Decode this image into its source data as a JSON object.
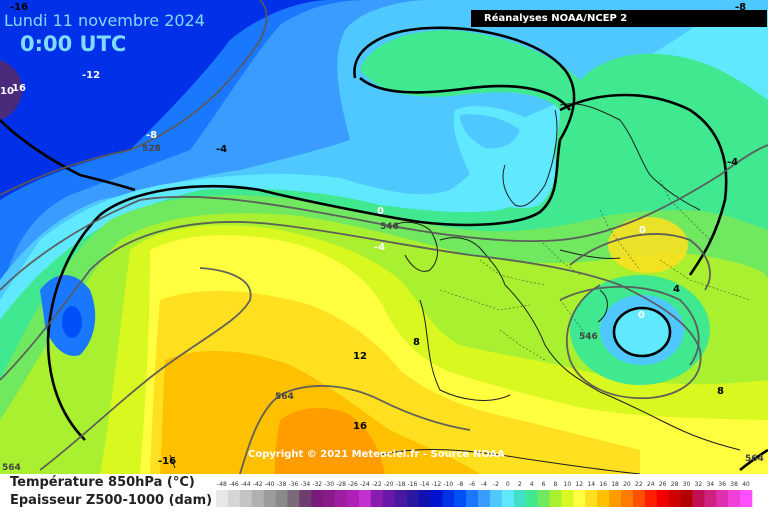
{
  "header": {
    "date": "Lundi 11 novembre 2024",
    "time": "0:00 UTC",
    "source": "Réanalyses NOAA/NCEP 2"
  },
  "copyright": "Copyright © 2021 Meteociel.fr - Source NOAA",
  "legend": {
    "title_temperature": "Température 850hPa (°C)",
    "title_thickness": "Epaisseur Z500-1000 (dam)",
    "scale": [
      {
        "value": -48,
        "color": "#e8e8e8"
      },
      {
        "value": -46,
        "color": "#d6d6d6"
      },
      {
        "value": -44,
        "color": "#c4c4c4"
      },
      {
        "value": -42,
        "color": "#b0b0b0"
      },
      {
        "value": -40,
        "color": "#9c9c9c"
      },
      {
        "value": -38,
        "color": "#8a8a8a"
      },
      {
        "value": -36,
        "color": "#7a6a7a"
      },
      {
        "value": -34,
        "color": "#6e3f6e"
      },
      {
        "value": -32,
        "color": "#7a1a7a"
      },
      {
        "value": -30,
        "color": "#8a1a8a"
      },
      {
        "value": -28,
        "color": "#9e1ea0"
      },
      {
        "value": -26,
        "color": "#b020b8"
      },
      {
        "value": -24,
        "color": "#c430d0"
      },
      {
        "value": -22,
        "color": "#8a1cb0"
      },
      {
        "value": -20,
        "color": "#6a18a8"
      },
      {
        "value": -18,
        "color": "#4a18a0"
      },
      {
        "value": -16,
        "color": "#2a18a0"
      },
      {
        "value": -14,
        "color": "#1010b0"
      },
      {
        "value": -12,
        "color": "#0014d0"
      },
      {
        "value": -10,
        "color": "#0030e8"
      },
      {
        "value": -8,
        "color": "#0050f8"
      },
      {
        "value": -6,
        "color": "#1a78ff"
      },
      {
        "value": -4,
        "color": "#3a9cff"
      },
      {
        "value": -2,
        "color": "#4fc8ff"
      },
      {
        "value": 0,
        "color": "#60e8ff"
      },
      {
        "value": 2,
        "color": "#40e0c8"
      },
      {
        "value": 4,
        "color": "#40e890"
      },
      {
        "value": 6,
        "color": "#70e860"
      },
      {
        "value": 8,
        "color": "#a8f030"
      },
      {
        "value": 10,
        "color": "#d8f820"
      },
      {
        "value": 12,
        "color": "#ffff40"
      },
      {
        "value": 14,
        "color": "#ffe020"
      },
      {
        "value": 16,
        "color": "#ffc000"
      },
      {
        "value": 18,
        "color": "#ff9c00"
      },
      {
        "value": 20,
        "color": "#ff7c00"
      },
      {
        "value": 22,
        "color": "#ff5000"
      },
      {
        "value": 24,
        "color": "#ff2000"
      },
      {
        "value": 26,
        "color": "#f00000"
      },
      {
        "value": 28,
        "color": "#d00000"
      },
      {
        "value": 30,
        "color": "#b00000"
      },
      {
        "value": 32,
        "color": "#c01050"
      },
      {
        "value": 34,
        "color": "#d02080"
      },
      {
        "value": 36,
        "color": "#e030b0"
      },
      {
        "value": 38,
        "color": "#f040d8"
      },
      {
        "value": 40,
        "color": "#ff50ff"
      }
    ]
  },
  "colors": {
    "deep_blue": "#0030e8",
    "blue": "#1a78ff",
    "light_blue": "#3a9cff",
    "cyan": "#4fc8ff",
    "pale_cyan": "#60e8ff",
    "teal": "#40e0c8",
    "green": "#40e890",
    "light_green": "#70e860",
    "lime": "#a8f030",
    "yellow_green": "#d8f820",
    "yellow": "#ffff40",
    "gold": "#ffe020",
    "orange": "#ffc000",
    "dark_orange": "#ff9c00"
  },
  "temperature_labels": [
    {
      "id": "t-16-nw",
      "text": "-16"
    },
    {
      "id": "t-8-ne",
      "text": "-8"
    },
    {
      "id": "t-12",
      "text": "-12"
    },
    {
      "id": "t-16-w",
      "text": "16"
    },
    {
      "id": "t-10-w",
      "text": "10"
    },
    {
      "id": "t-8-c",
      "text": "-8"
    },
    {
      "id": "t-4-c",
      "text": "-4"
    },
    {
      "id": "t-4-e",
      "text": "-4"
    },
    {
      "id": "t0-c",
      "text": "0"
    },
    {
      "id": "t-4-s",
      "text": "-4"
    },
    {
      "id": "t0-e1",
      "text": "0"
    },
    {
      "id": "t0-e2",
      "text": "0"
    },
    {
      "id": "t8",
      "text": "8"
    },
    {
      "id": "t12",
      "text": "12"
    },
    {
      "id": "t16",
      "text": "16"
    },
    {
      "id": "t-16-sw",
      "text": "-16"
    },
    {
      "id": "t8-se",
      "text": "8"
    },
    {
      "id": "t4-se",
      "text": "4"
    }
  ],
  "thickness_labels": [
    {
      "id": "z528",
      "text": "528"
    },
    {
      "id": "z546-c",
      "text": "546"
    },
    {
      "id": "z546-e",
      "text": "546"
    },
    {
      "id": "z564-s",
      "text": "564"
    },
    {
      "id": "z564-sw",
      "text": "564"
    },
    {
      "id": "z564-se",
      "text": "564"
    }
  ]
}
